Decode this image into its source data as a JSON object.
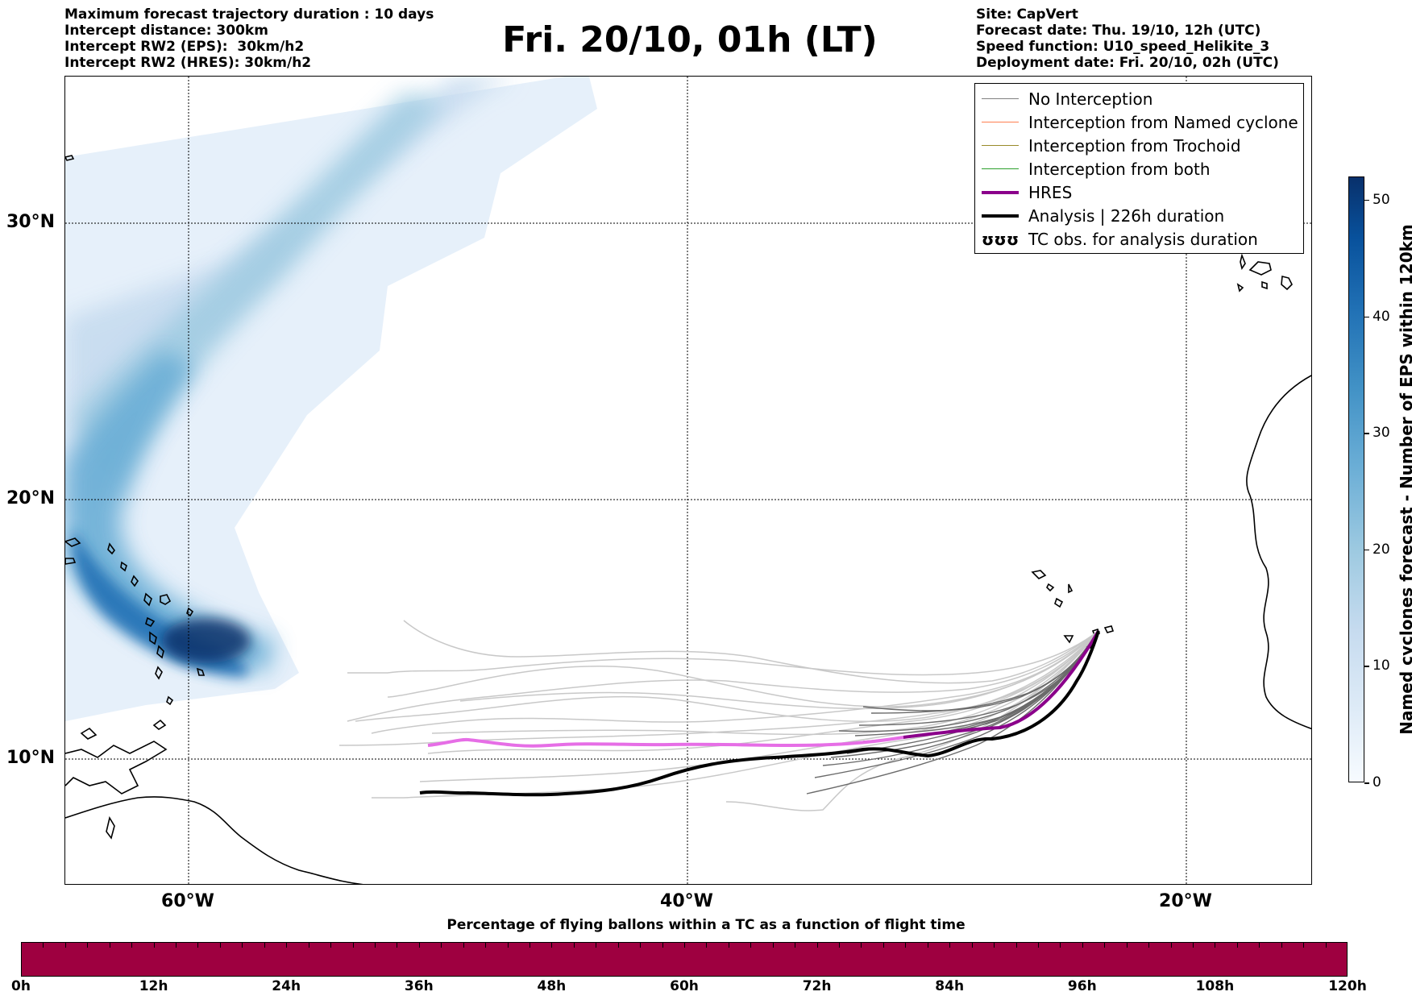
{
  "header_left": [
    "Maximum forecast trajectory duration : 10 days",
    "Intercept distance: 300km",
    "Intercept RW2 (EPS):  30km/h2",
    "Intercept RW2 (HRES): 30km/h2"
  ],
  "title": "Fri. 20/10, 01h (LT)",
  "header_right": [
    "Site: CapVert",
    "Forecast date: Thu. 19/10, 12h (UTC)",
    "Speed function: U10_speed_Helikite_3",
    "Deployment date: Fri. 20/10, 02h (UTC)"
  ],
  "map": {
    "lat_labels": [
      {
        "text": "30°N",
        "lat": 30
      },
      {
        "text": "20°N",
        "lat": 20
      },
      {
        "text": "10°N",
        "lat": 10
      }
    ],
    "lon_labels": [
      {
        "text": "60°W",
        "lon": -60
      },
      {
        "text": "40°W",
        "lon": -40
      },
      {
        "text": "20°W",
        "lon": -20
      }
    ]
  },
  "legend": [
    {
      "label": "No Interception",
      "color": "#808080",
      "style": "thin"
    },
    {
      "label": "Interception from Named cyclone",
      "color": "#ff7f50",
      "style": "thin"
    },
    {
      "label": "Interception from Trochoid",
      "color": "#9a8a2a",
      "style": "thin"
    },
    {
      "label": "Interception from both",
      "color": "#2ca02c",
      "style": "thin"
    },
    {
      "label": "HRES",
      "color": "#8b008b",
      "style": "thick"
    },
    {
      "label": "Analysis | 226h duration",
      "color": "#000000",
      "style": "thick"
    },
    {
      "label": "TC obs. for analysis duration",
      "color": "#000000",
      "style": "symbol",
      "symbol": "ʊʊʊ"
    }
  ],
  "colorbar": {
    "title": "Named cyclones forecast - Number of EPS within 120km",
    "ticks": [
      "0",
      "10",
      "20",
      "30",
      "40",
      "50"
    ]
  },
  "timebar": {
    "title": "Percentage of flying ballons within a TC as a function of flight time",
    "ticks": [
      "0h",
      "12h",
      "24h",
      "36h",
      "48h",
      "60h",
      "72h",
      "84h",
      "96h",
      "108h",
      "120h"
    ]
  }
}
